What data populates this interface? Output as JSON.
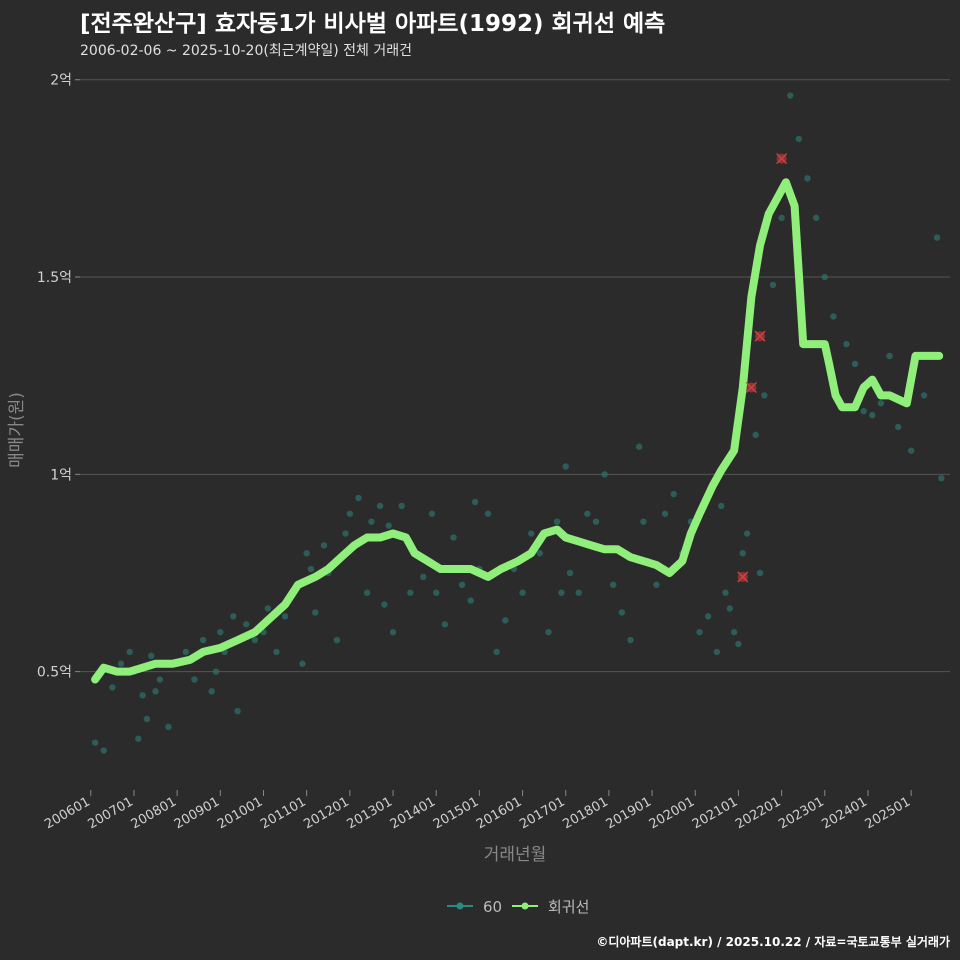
{
  "header": {
    "title": "[전주완산구] 효자동1가 비사벌 아파트(1992) 회귀선 예측",
    "subtitle": "2006-02-06 ~ 2025-10-20(최근계약일) 전체 거래건"
  },
  "footer": {
    "credit": "©디아파트(dapt.kr) / 2025.10.22 / 자료=국토교통부 실거래가"
  },
  "colors": {
    "background": "#2b2b2c",
    "grid": "#555555",
    "scatter": "#2f6f67",
    "line": "#90ee7a",
    "outlier": "#b23a3a",
    "legend_scatter": "#2a8a80"
  },
  "chart_data": {
    "type": "line",
    "xlabel": "거래년월",
    "ylabel": "매매가(원)",
    "ylim": [
      0.2,
      2.05
    ],
    "yticks": [
      {
        "value": 0.5,
        "label": "0.5억"
      },
      {
        "value": 1.0,
        "label": "1억"
      },
      {
        "value": 1.5,
        "label": "1.5억"
      },
      {
        "value": 2.0,
        "label": "2억"
      }
    ],
    "xlim": [
      2005.75,
      2025.9
    ],
    "xticks": [
      "200601",
      "200701",
      "200801",
      "200901",
      "201001",
      "201101",
      "201201",
      "201301",
      "201401",
      "201501",
      "201601",
      "201701",
      "201801",
      "201901",
      "202001",
      "202101",
      "202201",
      "202301",
      "202401",
      "202501"
    ],
    "legend": [
      {
        "name": "60",
        "kind": "scatter"
      },
      {
        "name": "회귀선",
        "kind": "line"
      }
    ],
    "series": [
      {
        "name": "회귀선",
        "x": [
          2006.1,
          2006.3,
          2006.6,
          2006.9,
          2007.2,
          2007.5,
          2007.9,
          2008.3,
          2008.6,
          2009.0,
          2009.4,
          2009.8,
          2010.1,
          2010.5,
          2010.8,
          2011.2,
          2011.5,
          2011.8,
          2012.1,
          2012.4,
          2012.7,
          2013.0,
          2013.3,
          2013.5,
          2013.8,
          2014.1,
          2014.4,
          2014.8,
          2015.2,
          2015.5,
          2015.9,
          2016.2,
          2016.5,
          2016.8,
          2017.0,
          2017.3,
          2017.6,
          2017.9,
          2018.2,
          2018.5,
          2018.8,
          2019.1,
          2019.4,
          2019.7,
          2019.9,
          2020.1,
          2020.4,
          2020.6,
          2020.9,
          2021.1,
          2021.3,
          2021.5,
          2021.7,
          2021.9,
          2022.1,
          2022.3,
          2022.5,
          2022.7,
          2022.85,
          2023.0,
          2023.1,
          2023.25,
          2023.4,
          2023.7,
          2023.9,
          2024.1,
          2024.3,
          2024.5,
          2024.7,
          2024.9,
          2025.1,
          2025.3,
          2025.5,
          2025.65
        ],
        "y": [
          0.48,
          0.51,
          0.5,
          0.5,
          0.51,
          0.52,
          0.52,
          0.53,
          0.55,
          0.56,
          0.58,
          0.6,
          0.63,
          0.67,
          0.72,
          0.74,
          0.76,
          0.79,
          0.82,
          0.84,
          0.84,
          0.85,
          0.84,
          0.8,
          0.78,
          0.76,
          0.76,
          0.76,
          0.74,
          0.76,
          0.78,
          0.8,
          0.85,
          0.86,
          0.84,
          0.83,
          0.82,
          0.81,
          0.81,
          0.79,
          0.78,
          0.77,
          0.75,
          0.78,
          0.85,
          0.9,
          0.97,
          1.01,
          1.06,
          1.22,
          1.45,
          1.58,
          1.66,
          1.7,
          1.74,
          1.68,
          1.33,
          1.33,
          1.33,
          1.33,
          1.28,
          1.2,
          1.17,
          1.17,
          1.22,
          1.24,
          1.2,
          1.2,
          1.19,
          1.18,
          1.3,
          1.3,
          1.3,
          1.3
        ]
      }
    ],
    "scatter": [
      {
        "name": "60",
        "x": [
          2006.1,
          2006.3,
          2006.5,
          2006.7,
          2006.9,
          2007.0,
          2007.1,
          2007.2,
          2007.3,
          2007.5,
          2007.6,
          2007.8,
          2008.0,
          2008.2,
          2008.4,
          2008.6,
          2008.8,
          2009.0,
          2009.1,
          2009.3,
          2009.4,
          2009.6,
          2009.8,
          2010.0,
          2010.1,
          2010.3,
          2010.5,
          2010.7,
          2010.8,
          2011.0,
          2011.1,
          2011.2,
          2011.4,
          2011.5,
          2011.7,
          2011.9,
          2012.0,
          2012.2,
          2012.4,
          2012.5,
          2012.7,
          2012.9,
          2013.0,
          2013.2,
          2013.4,
          2013.5,
          2013.7,
          2013.9,
          2014.0,
          2014.2,
          2014.4,
          2014.6,
          2014.8,
          2015.0,
          2015.2,
          2015.4,
          2015.6,
          2015.8,
          2016.0,
          2016.2,
          2016.4,
          2016.6,
          2016.8,
          2017.0,
          2017.1,
          2017.3,
          2017.5,
          2017.7,
          2017.9,
          2018.1,
          2018.3,
          2018.5,
          2018.7,
          2018.9,
          2019.1,
          2019.3,
          2019.5,
          2019.7,
          2019.9,
          2020.1,
          2020.3,
          2020.5,
          2020.7,
          2020.8,
          2020.9,
          2021.0,
          2021.1,
          2021.2,
          2021.4,
          2021.6,
          2021.8,
          2022.0,
          2022.2,
          2022.4,
          2022.6,
          2022.8,
          2023.0,
          2023.2,
          2023.5,
          2023.7,
          2023.9,
          2024.1,
          2024.3,
          2024.5,
          2024.7,
          2025.0,
          2025.3,
          2025.6,
          2025.7,
          2007.4,
          2008.9,
          2010.9,
          2012.8,
          2014.9,
          2016.9,
          2018.8,
          2020.6,
          2021.5
        ],
        "y": [
          0.32,
          0.3,
          0.46,
          0.52,
          0.55,
          0.5,
          0.33,
          0.44,
          0.38,
          0.45,
          0.48,
          0.36,
          0.52,
          0.55,
          0.48,
          0.58,
          0.45,
          0.6,
          0.55,
          0.64,
          0.4,
          0.62,
          0.58,
          0.6,
          0.66,
          0.55,
          0.64,
          0.7,
          0.72,
          0.8,
          0.76,
          0.65,
          0.82,
          0.75,
          0.58,
          0.85,
          0.9,
          0.94,
          0.7,
          0.88,
          0.92,
          0.87,
          0.6,
          0.92,
          0.7,
          0.8,
          0.74,
          0.9,
          0.7,
          0.62,
          0.84,
          0.72,
          0.68,
          0.76,
          0.9,
          0.55,
          0.63,
          0.76,
          0.7,
          0.85,
          0.8,
          0.6,
          0.88,
          1.02,
          0.75,
          0.7,
          0.9,
          0.88,
          1.0,
          0.72,
          0.65,
          0.58,
          1.07,
          0.78,
          0.72,
          0.9,
          0.95,
          0.8,
          0.88,
          0.6,
          0.64,
          0.55,
          0.7,
          0.66,
          0.6,
          0.57,
          0.8,
          0.85,
          1.1,
          1.2,
          1.48,
          1.65,
          1.96,
          1.85,
          1.75,
          1.65,
          1.5,
          1.4,
          1.33,
          1.28,
          1.16,
          1.15,
          1.18,
          1.3,
          1.12,
          1.06,
          1.2,
          1.6,
          0.99,
          0.54,
          0.5,
          0.52,
          0.67,
          0.93,
          0.7,
          0.88,
          0.92,
          0.75
        ],
        "outliers_x": [
          2021.1,
          2021.3,
          2021.5,
          2022.0
        ],
        "outliers_y": [
          0.74,
          1.22,
          1.35,
          1.8
        ]
      }
    ]
  }
}
